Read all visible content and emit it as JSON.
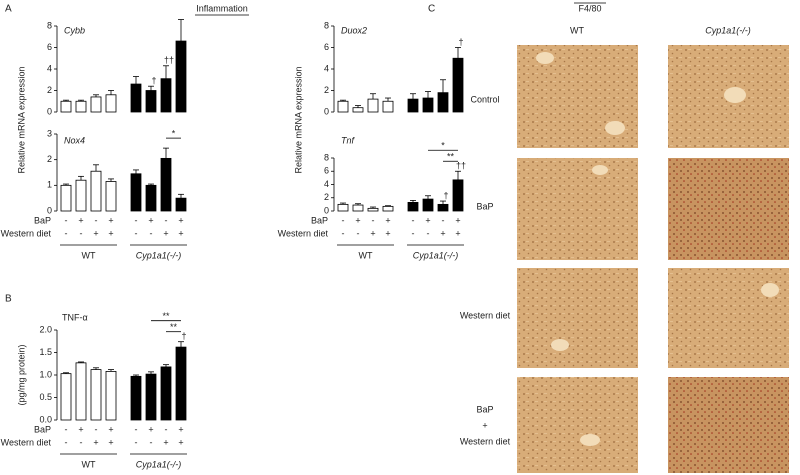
{
  "panels": {
    "a": "A",
    "b": "B",
    "c": "C",
    "heading": "Inflammation"
  },
  "chart_data": [
    {
      "type": "bar",
      "title": "Cybb",
      "ylabel": "Relative mRNA expression",
      "ylim": [
        0,
        8
      ],
      "yticks": [
        0,
        2,
        4,
        6,
        8
      ],
      "series": [
        {
          "color": "#ffffff",
          "values": [
            1.0,
            1.0,
            1.4,
            1.6
          ],
          "errors": [
            0.1,
            0.1,
            0.2,
            0.4
          ],
          "annotations": [
            null,
            null,
            null,
            null
          ]
        },
        {
          "color": "#000000",
          "values": [
            2.6,
            2.0,
            3.1,
            6.6
          ],
          "errors": [
            0.7,
            0.4,
            1.2,
            2.0
          ],
          "annotations": [
            null,
            "†",
            "††",
            null
          ]
        }
      ],
      "brackets": []
    },
    {
      "type": "bar",
      "title": "Duox2",
      "ylabel": "Relative mRNA expression",
      "ylim": [
        0,
        8
      ],
      "yticks": [
        0,
        2,
        4,
        6,
        8
      ],
      "series": [
        {
          "color": "#ffffff",
          "values": [
            1.0,
            0.4,
            1.2,
            1.0
          ],
          "errors": [
            0.1,
            0.2,
            0.5,
            0.3
          ],
          "annotations": [
            null,
            null,
            null,
            null
          ]
        },
        {
          "color": "#000000",
          "values": [
            1.2,
            1.3,
            1.8,
            5.0
          ],
          "errors": [
            0.5,
            0.6,
            1.2,
            1.0
          ],
          "annotations": [
            null,
            null,
            null,
            "†"
          ]
        }
      ],
      "brackets": []
    },
    {
      "type": "bar",
      "title": "Nox4",
      "ylim": [
        0,
        3
      ],
      "yticks": [
        0,
        1,
        2,
        3
      ],
      "series": [
        {
          "name": "WT",
          "color": "#ffffff",
          "values": [
            1.0,
            1.2,
            1.55,
            1.15
          ],
          "errors": [
            0.05,
            0.15,
            0.25,
            0.1
          ],
          "annotations": [
            null,
            null,
            null,
            null
          ]
        },
        {
          "name": "Cyp1a1(-/-)",
          "color": "#000000",
          "values": [
            1.45,
            1.0,
            2.05,
            0.5
          ],
          "errors": [
            0.15,
            0.05,
            0.4,
            0.15
          ],
          "annotations": [
            null,
            null,
            null,
            null
          ]
        }
      ],
      "brackets": [
        {
          "text": "*",
          "from": 2,
          "to": 3
        }
      ],
      "rows": [
        {
          "label": "BaP",
          "signs": [
            "-",
            "+",
            "-",
            "+"
          ]
        },
        {
          "label": "Western diet",
          "signs": [
            "-",
            "-",
            "+",
            "+"
          ]
        }
      ]
    },
    {
      "type": "bar",
      "title": "Tnf",
      "ylim": [
        0,
        8
      ],
      "yticks": [
        0,
        2,
        4,
        6,
        8
      ],
      "series": [
        {
          "name": "WT",
          "color": "#ffffff",
          "values": [
            1.0,
            0.9,
            0.4,
            0.7
          ],
          "errors": [
            0.2,
            0.2,
            0.2,
            0.1
          ],
          "annotations": [
            null,
            null,
            null,
            null
          ]
        },
        {
          "name": "Cyp1a1(-/-)",
          "color": "#000000",
          "values": [
            1.3,
            1.8,
            1.0,
            4.7
          ],
          "errors": [
            0.3,
            0.5,
            0.5,
            1.3
          ],
          "annotations": [
            null,
            null,
            "†",
            "††"
          ]
        }
      ],
      "brackets": [
        {
          "text": "**",
          "from": 2,
          "to": 3
        },
        {
          "text": "*",
          "from": 1,
          "to": 3
        }
      ],
      "rows": [
        {
          "label": "BaP",
          "signs": [
            "-",
            "+",
            "-",
            "+"
          ]
        },
        {
          "label": "Western diet",
          "signs": [
            "-",
            "-",
            "+",
            "+"
          ]
        }
      ]
    },
    {
      "type": "bar",
      "title": "TNF-α",
      "ylabel": "(pg/mg protein)",
      "ylim": [
        0,
        2
      ],
      "yticks": [
        {
          "value": 0,
          "label": "0.0"
        },
        {
          "value": 0.5,
          "label": "0.5"
        },
        {
          "value": 1,
          "label": "1.0"
        },
        {
          "value": 1.5,
          "label": "1.5"
        },
        {
          "value": 2,
          "label": "2.0"
        }
      ],
      "series": [
        {
          "name": "WT",
          "color": "#ffffff",
          "values": [
            1.03,
            1.27,
            1.12,
            1.08
          ],
          "errors": [
            0.02,
            0.02,
            0.04,
            0.04
          ],
          "annotations": [
            null,
            null,
            null,
            null
          ]
        },
        {
          "name": "Cyp1a1(-/-)",
          "color": "#000000",
          "values": [
            0.97,
            1.02,
            1.18,
            1.62
          ],
          "errors": [
            0.03,
            0.05,
            0.05,
            0.12
          ],
          "annotations": [
            null,
            null,
            null,
            "†"
          ]
        }
      ],
      "brackets": [
        {
          "text": "**",
          "from": 2,
          "to": 3
        },
        {
          "text": "**",
          "from": 1,
          "to": 3
        }
      ],
      "rows": [
        {
          "label": "BaP",
          "signs": [
            "-",
            "+",
            "-",
            "+"
          ]
        },
        {
          "label": "Western diet",
          "signs": [
            "-",
            "-",
            "+",
            "+"
          ]
        }
      ]
    }
  ],
  "panel_c": {
    "stain": "F4/80",
    "columns": [
      "WT",
      "Cyp1a1(-/-)"
    ],
    "rows": [
      "Control",
      "BaP",
      "Western diet",
      [
        "BaP",
        "+",
        "Western diet"
      ]
    ]
  }
}
